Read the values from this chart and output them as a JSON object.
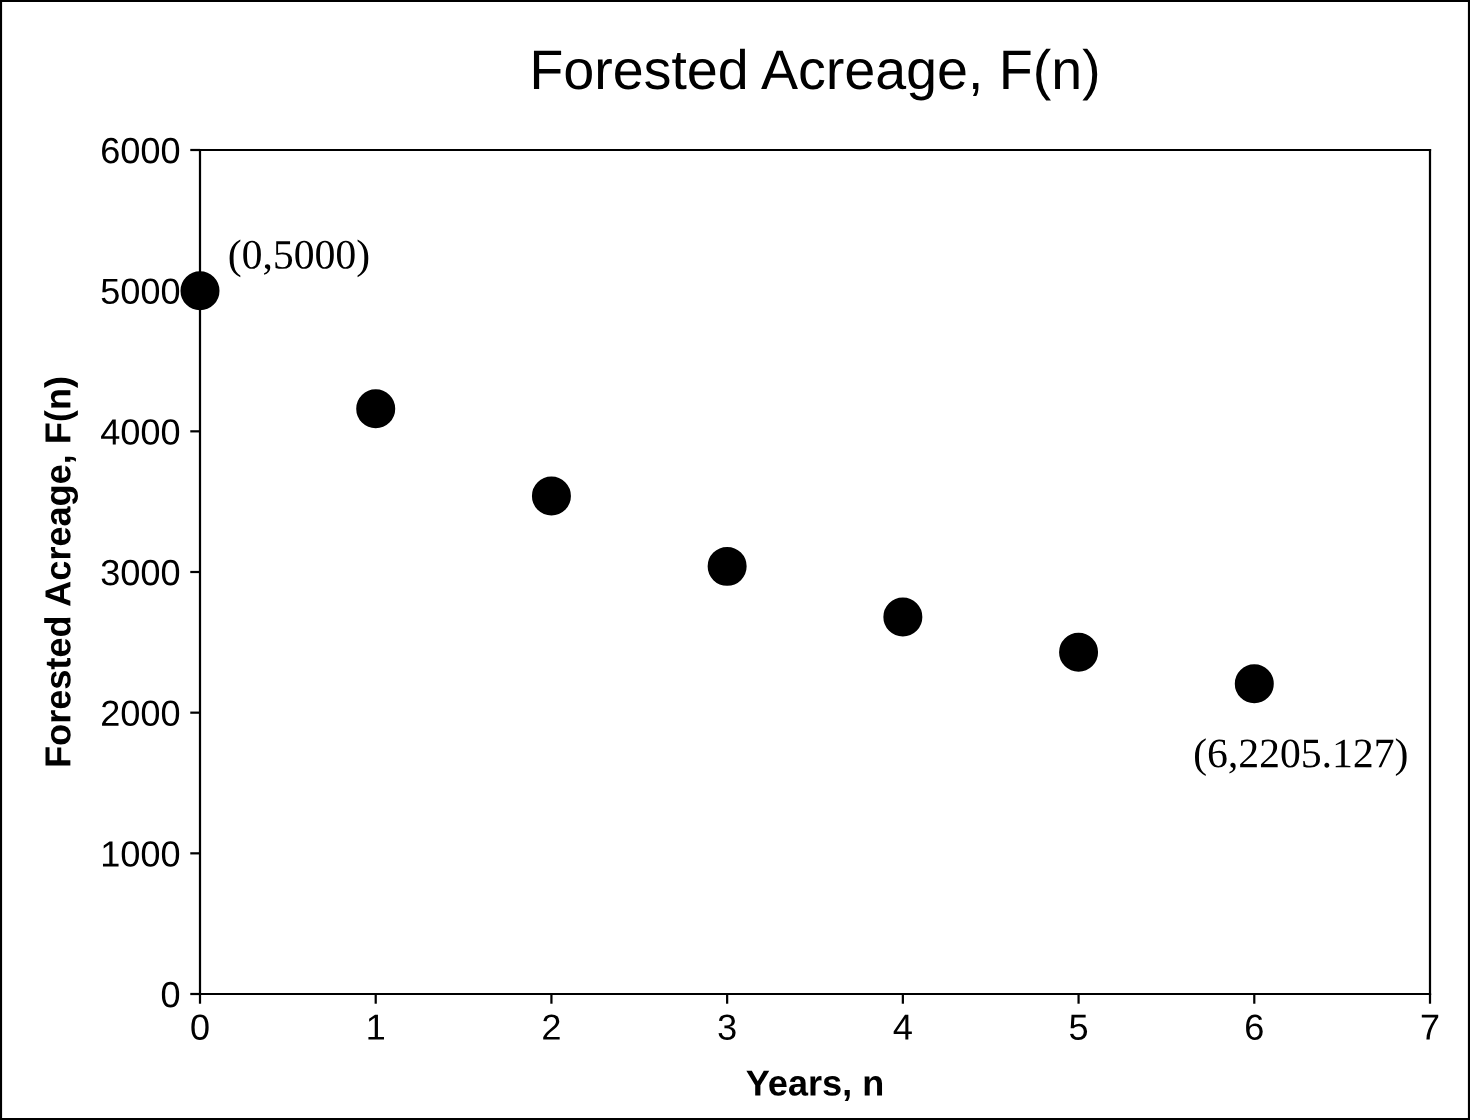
{
  "chart_data": {
    "type": "scatter",
    "title": "Forested Acreage, F(n)",
    "xlabel": "Years, n",
    "ylabel": "Forested Acreage, F(n)",
    "x": [
      0,
      1,
      2,
      3,
      4,
      5,
      6
    ],
    "series": [
      {
        "color": "#000000",
        "values": [
          5000,
          4160,
          3540,
          3040,
          2680,
          2430,
          2205.127
        ]
      }
    ],
    "xlim": [
      0,
      7
    ],
    "xticks": [
      0,
      1,
      2,
      3,
      4,
      5,
      6,
      7
    ],
    "ylim": [
      0,
      6000
    ],
    "yticks": [
      0,
      1000,
      2000,
      3000,
      4000,
      5000,
      6000
    ],
    "marker": "circle",
    "grid": false,
    "legend": false,
    "annotations": [
      {
        "text": "(0,5000)",
        "x": 0,
        "y": 5000
      },
      {
        "text": "(6,2205.127)",
        "x": 6,
        "y": 2205.127
      }
    ]
  }
}
